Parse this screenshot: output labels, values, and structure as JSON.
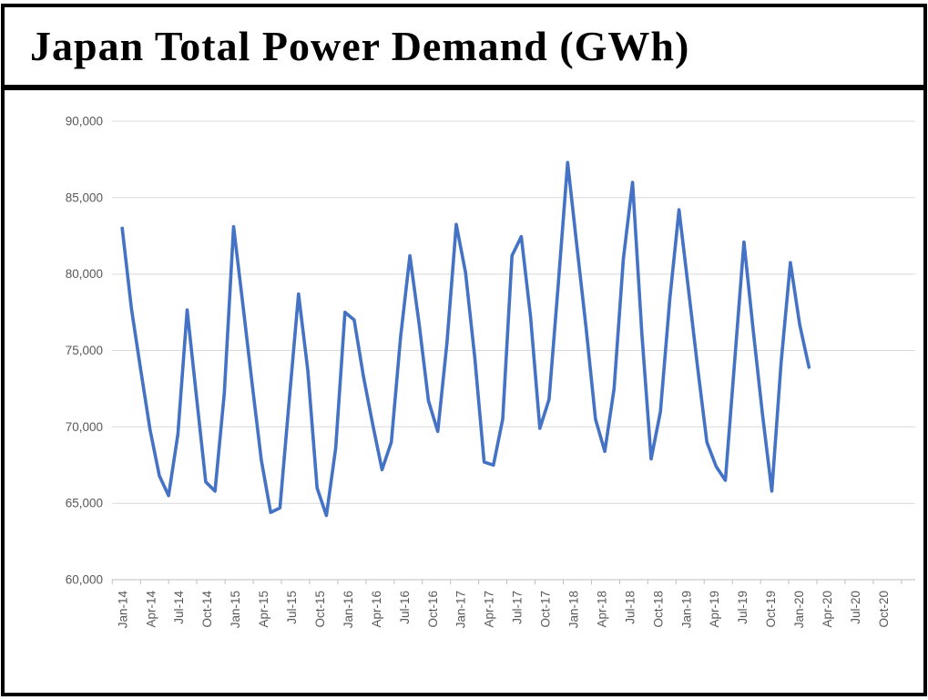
{
  "window": {
    "title": "Japan Total Power Demand (GWh)"
  },
  "style": {
    "line_color": "#4472C4",
    "gridline_color": "#D9D9D9",
    "axis_color": "#BFBFBF",
    "label_color": "#595959",
    "frame_color": "#000000"
  },
  "chart_data": {
    "type": "line",
    "title": "Japan Total Power Demand (GWh)",
    "xlabel": "",
    "ylabel": "",
    "grid": "horizontal",
    "legend": "none",
    "x": [
      "Jan-14",
      "Feb-14",
      "Mar-14",
      "Apr-14",
      "May-14",
      "Jun-14",
      "Jul-14",
      "Aug-14",
      "Sep-14",
      "Oct-14",
      "Nov-14",
      "Dec-14",
      "Jan-15",
      "Feb-15",
      "Mar-15",
      "Apr-15",
      "May-15",
      "Jun-15",
      "Jul-15",
      "Aug-15",
      "Sep-15",
      "Oct-15",
      "Nov-15",
      "Dec-15",
      "Jan-16",
      "Feb-16",
      "Mar-16",
      "Apr-16",
      "May-16",
      "Jun-16",
      "Jul-16",
      "Aug-16",
      "Sep-16",
      "Oct-16",
      "Nov-16",
      "Dec-16",
      "Jan-17",
      "Feb-17",
      "Mar-17",
      "Apr-17",
      "May-17",
      "Jun-17",
      "Jul-17",
      "Aug-17",
      "Sep-17",
      "Oct-17",
      "Nov-17",
      "Dec-17",
      "Jan-18",
      "Feb-18",
      "Mar-18",
      "Apr-18",
      "May-18",
      "Jun-18",
      "Jul-18",
      "Aug-18",
      "Sep-18",
      "Oct-18",
      "Nov-18",
      "Dec-18",
      "Jan-19",
      "Feb-19",
      "Mar-19",
      "Apr-19",
      "May-19",
      "Jun-19",
      "Jul-19",
      "Aug-19",
      "Sep-19",
      "Oct-19",
      "Nov-19",
      "Dec-19",
      "Jan-20",
      "Feb-20",
      "Mar-20"
    ],
    "series": [
      {
        "name": "Japan Total Power Demand (GWh)",
        "values": [
          83000,
          77700,
          73700,
          69800,
          66800,
          65500,
          69500,
          77650,
          72000,
          66400,
          65800,
          72200,
          83100,
          78000,
          72800,
          67800,
          64400,
          64700,
          71750,
          78700,
          73700,
          66000,
          64200,
          68600,
          77500,
          77000,
          73300,
          70150,
          67200,
          69000,
          75900,
          81200,
          76700,
          71700,
          69700,
          75500,
          83250,
          80100,
          74500,
          67700,
          67500,
          70500,
          81200,
          82450,
          77200,
          69900,
          71800,
          79400,
          87300,
          81800,
          76400,
          70500,
          68400,
          72500,
          81000,
          86000,
          76100,
          67900,
          71000,
          78300,
          84200,
          79100,
          73900,
          69000,
          67400,
          66500,
          74300,
          82100,
          76300,
          70800,
          65800,
          74200,
          80750,
          76700,
          73900
        ]
      }
    ],
    "x_axis": {
      "labels": [
        "Jan-14",
        "Apr-14",
        "Jul-14",
        "Oct-14",
        "Jan-15",
        "Apr-15",
        "Jul-15",
        "Oct-15",
        "Jan-16",
        "Apr-16",
        "Jul-16",
        "Oct-16",
        "Jan-17",
        "Apr-17",
        "Jul-17",
        "Oct-17",
        "Jan-18",
        "Apr-18",
        "Jul-18",
        "Oct-18",
        "Jan-19",
        "Apr-19",
        "Jul-19",
        "Oct-19",
        "Jan-20",
        "Apr-20",
        "Jul-20",
        "Oct-20"
      ],
      "label_rotation_deg": -90,
      "tick_count": 29
    },
    "y_axis": {
      "min": 60000,
      "max": 90000,
      "step": 5000,
      "labels": [
        "90,000",
        "85,000",
        "80,000",
        "75,000",
        "70,000",
        "65,000",
        "60,000"
      ]
    }
  }
}
